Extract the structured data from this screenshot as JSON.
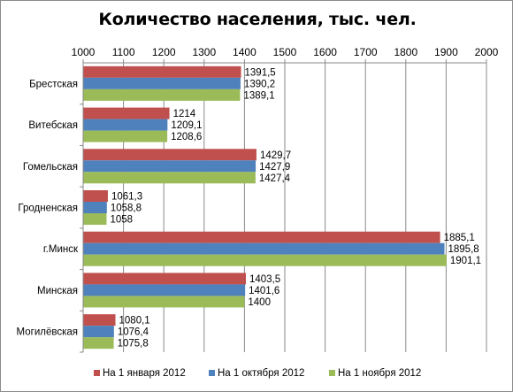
{
  "chart_data": {
    "type": "bar",
    "orientation": "horizontal",
    "title": "Количество населения, тыс. чел.",
    "categories": [
      "Брестская",
      "Витебская",
      "Гомельская",
      "Гродненская",
      "г.Минск",
      "Минская",
      "Могилёвская"
    ],
    "category_order": "top-to-bottom",
    "series": [
      {
        "name": "На 1 января 2012",
        "color": "#C0504D",
        "values": [
          1391.5,
          1214,
          1429.7,
          1061.3,
          1885.1,
          1403.5,
          1080.1
        ],
        "labels": [
          "1391,5",
          "1214",
          "1429,7",
          "1061,3",
          "1885,1",
          "1403,5",
          "1080,1"
        ]
      },
      {
        "name": "На 1 октября 2012",
        "color": "#4F81BD",
        "values": [
          1390.2,
          1209.1,
          1427.9,
          1058.8,
          1895.8,
          1401.6,
          1076.4
        ],
        "labels": [
          "1390,2",
          "1209,1",
          "1427,9",
          "1058,8",
          "1895,8",
          "1401,6",
          "1076,4"
        ]
      },
      {
        "name": "На 1 ноября 2012",
        "color": "#9BBB59",
        "values": [
          1389.1,
          1208.6,
          1427.4,
          1058,
          1901.1,
          1400,
          1075.8
        ],
        "labels": [
          "1389,1",
          "1208,6",
          "1427,4",
          "1058",
          "1901,1",
          "1400",
          "1075,8"
        ]
      }
    ],
    "value_axis": {
      "position": "top",
      "range": [
        1000,
        2000
      ],
      "ticks": [
        "1000",
        "1100",
        "1200",
        "1300",
        "1400",
        "1500",
        "1600",
        "1700",
        "1800",
        "1900",
        "2000"
      ],
      "gridlines": true
    },
    "legend": {
      "position": "bottom"
    }
  }
}
